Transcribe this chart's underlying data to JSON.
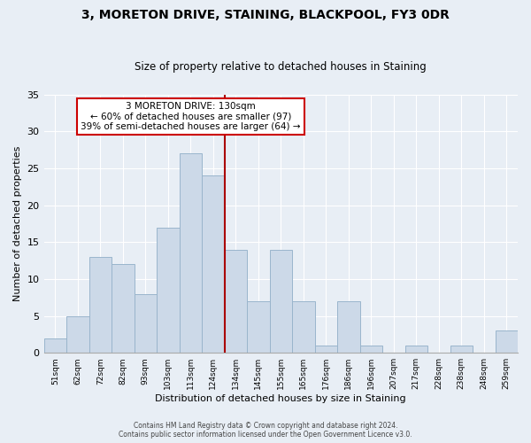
{
  "title": "3, MORETON DRIVE, STAINING, BLACKPOOL, FY3 0DR",
  "subtitle": "Size of property relative to detached houses in Staining",
  "xlabel": "Distribution of detached houses by size in Staining",
  "ylabel": "Number of detached properties",
  "bar_labels": [
    "51sqm",
    "62sqm",
    "72sqm",
    "82sqm",
    "93sqm",
    "103sqm",
    "113sqm",
    "124sqm",
    "134sqm",
    "145sqm",
    "155sqm",
    "165sqm",
    "176sqm",
    "186sqm",
    "196sqm",
    "207sqm",
    "217sqm",
    "228sqm",
    "238sqm",
    "248sqm",
    "259sqm"
  ],
  "bar_values": [
    2,
    5,
    13,
    12,
    8,
    17,
    27,
    24,
    14,
    7,
    14,
    7,
    1,
    7,
    1,
    0,
    1,
    0,
    1,
    0,
    3
  ],
  "bar_color": "#ccd9e8",
  "bar_edge_color": "#9ab5cc",
  "vline_color": "#aa0000",
  "vline_x": 7.5,
  "annotation_text_line1": "3 MORETON DRIVE: 130sqm",
  "annotation_text_line2": "← 60% of detached houses are smaller (97)",
  "annotation_text_line3": "39% of semi-detached houses are larger (64) →",
  "annotation_box_color": "#ffffff",
  "annotation_box_edge": "#cc0000",
  "ylim": [
    0,
    35
  ],
  "yticks": [
    0,
    5,
    10,
    15,
    20,
    25,
    30,
    35
  ],
  "background_color": "#e8eef5",
  "grid_color": "#ffffff",
  "footer_line1": "Contains HM Land Registry data © Crown copyright and database right 2024.",
  "footer_line2": "Contains public sector information licensed under the Open Government Licence v3.0."
}
